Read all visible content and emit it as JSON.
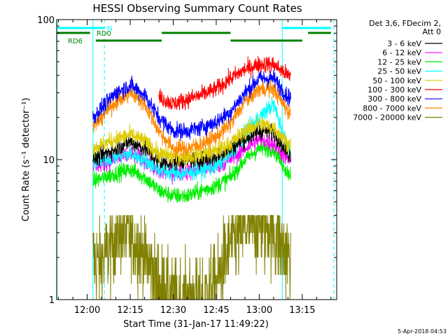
{
  "chart_data": {
    "type": "line",
    "title": "HESSI Observing Summary Count Rates",
    "xlabel": "Start Time (31-Jan-17 11:49:22)",
    "ylabel": "Count Rate (s⁻¹ detector⁻¹)",
    "yscale": "log",
    "ylim": [
      1,
      100
    ],
    "xlim": [
      "11:49:22",
      "13:27:00"
    ],
    "x_ticks": [
      "12:00",
      "12:15",
      "12:30",
      "12:45",
      "13:00",
      "13:15"
    ],
    "y_ticks": [
      "1",
      "10",
      "100"
    ],
    "legend_title": [
      "Det 3,6, FDecim 2,",
      "Att 0"
    ],
    "legend_position": "right",
    "series": [
      {
        "name": "3 - 6 keV",
        "color": "#000000",
        "x": [
          "12:02",
          "12:10",
          "12:15",
          "12:20",
          "12:25",
          "12:30",
          "12:35",
          "12:40",
          "12:45",
          "12:50",
          "12:55",
          "13:00",
          "13:05",
          "13:10"
        ],
        "values": [
          10,
          12,
          13.5,
          12,
          9.5,
          9.5,
          10,
          10,
          10.5,
          12,
          14,
          16,
          16,
          11
        ]
      },
      {
        "name": "6 - 12 keV",
        "color": "#ff00ff",
        "x": [
          "12:02",
          "12:10",
          "12:15",
          "12:20",
          "12:25",
          "12:30",
          "12:35",
          "12:40",
          "12:45",
          "12:50",
          "12:55",
          "13:00",
          "13:05",
          "13:10"
        ],
        "values": [
          9,
          10,
          11,
          10,
          8,
          8,
          8.2,
          8.5,
          9,
          10,
          12,
          14,
          13,
          10
        ]
      },
      {
        "name": "12 - 25 keV",
        "color": "#00ee00",
        "x": [
          "12:02",
          "12:10",
          "12:15",
          "12:20",
          "12:25",
          "12:30",
          "12:35",
          "12:40",
          "12:45",
          "12:50",
          "12:55",
          "13:00",
          "13:05",
          "13:10"
        ],
        "values": [
          7,
          8,
          8.5,
          7.5,
          6,
          5.5,
          5.5,
          6,
          6.5,
          7.5,
          10,
          12,
          12,
          8
        ]
      },
      {
        "name": "25 - 50 keV",
        "color": "#00ffff",
        "x": [
          "12:02",
          "12:10",
          "12:15",
          "12:20",
          "12:25",
          "12:30",
          "12:35",
          "12:40",
          "12:45",
          "12:50",
          "12:55",
          "13:00",
          "13:05",
          "13:10"
        ],
        "values": [
          9.5,
          10.5,
          11,
          10,
          8.5,
          8,
          8,
          8.5,
          9,
          11,
          15,
          20,
          25,
          12
        ]
      },
      {
        "name": "50 - 100 keV",
        "color": "#ddcc00",
        "x": [
          "12:02",
          "12:10",
          "12:15",
          "12:20",
          "12:25",
          "12:30",
          "12:35",
          "12:40",
          "12:45",
          "12:50",
          "12:55",
          "13:00",
          "13:05",
          "13:10"
        ],
        "values": [
          12,
          14,
          15,
          13.5,
          11,
          10.5,
          10.5,
          11,
          11.5,
          13,
          16,
          18,
          17,
          13
        ]
      },
      {
        "name": "100 - 300 keV",
        "color": "#ff0000",
        "x": [
          "12:02",
          "12:25",
          "12:30",
          "12:35",
          "12:40",
          "12:45",
          "12:50",
          "12:55",
          "13:00",
          "13:05",
          "13:10"
        ],
        "values": [
          20,
          28,
          25,
          27,
          29,
          32,
          38,
          44,
          48,
          48,
          40
        ]
      },
      {
        "name": "300 - 800 keV",
        "color": "#0000ff",
        "x": [
          "12:02",
          "12:10",
          "12:15",
          "12:20",
          "12:25",
          "12:30",
          "12:35",
          "12:40",
          "12:45",
          "12:50",
          "12:55",
          "13:00",
          "13:05",
          "13:10"
        ],
        "values": [
          20,
          30,
          34,
          29,
          20,
          16,
          16,
          17,
          18.5,
          22,
          30,
          38,
          38,
          28
        ]
      },
      {
        "name": "800 - 7000 keV",
        "color": "#ff8800",
        "x": [
          "12:02",
          "12:10",
          "12:15",
          "12:20",
          "12:25",
          "12:30",
          "12:35",
          "12:40",
          "12:45",
          "12:50",
          "12:55",
          "13:00",
          "13:05",
          "13:10"
        ],
        "values": [
          17,
          26,
          30,
          25,
          16,
          12,
          12,
          13,
          14.5,
          18,
          26,
          32,
          32,
          22
        ]
      },
      {
        "name": "7000 - 20000 keV",
        "color": "#808000",
        "x": [
          "12:02",
          "12:05",
          "12:10",
          "12:15",
          "12:20",
          "12:25",
          "12:30",
          "12:35",
          "12:40",
          "12:45",
          "12:50",
          "12:55",
          "13:00",
          "13:05",
          "13:10"
        ],
        "values": [
          2,
          1.8,
          2.8,
          3,
          2,
          1.3,
          1,
          1,
          1,
          1.3,
          2.5,
          3.2,
          3.5,
          3,
          2
        ]
      }
    ],
    "flag_lines": {
      "colors": {
        "saa": "#00ffff",
        "night": "#00ffff",
        "rd0": "#008000",
        "rd6": "#008000"
      },
      "labels": {
        "saa": "",
        "night": "N",
        "rd0": "RD0",
        "rd6": "RD6"
      }
    },
    "date_stamp": "5-Apr-2018 04:53"
  }
}
